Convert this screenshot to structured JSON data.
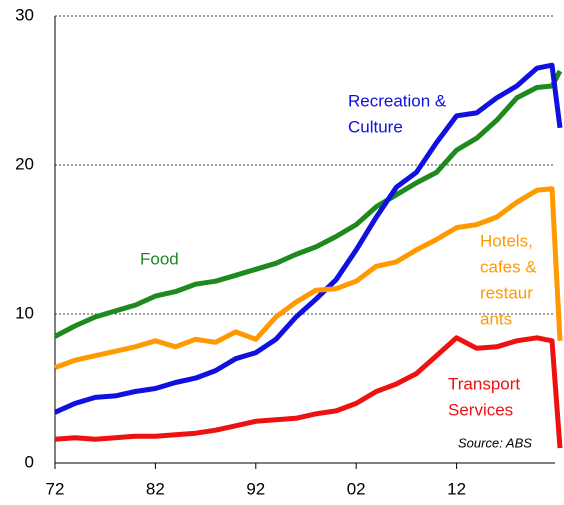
{
  "chart_data": {
    "type": "line",
    "x": [
      1972,
      1974,
      1976,
      1978,
      1980,
      1982,
      1984,
      1986,
      1988,
      1990,
      1992,
      1994,
      1996,
      1998,
      2000,
      2002,
      2004,
      2006,
      2008,
      2010,
      2012,
      2014,
      2016,
      2018,
      2020,
      2021.5,
      2022.3
    ],
    "xlim": [
      1972,
      2022.5
    ],
    "xticks": [
      {
        "value": 1972,
        "label": "72"
      },
      {
        "value": 1982,
        "label": "82"
      },
      {
        "value": 1992,
        "label": "92"
      },
      {
        "value": 2002,
        "label": "02"
      },
      {
        "value": 2012,
        "label": "12"
      }
    ],
    "ylim": [
      0,
      30
    ],
    "yticks": [
      0,
      10,
      20,
      30
    ],
    "grid": true,
    "series": [
      {
        "name_lines": [
          "Food"
        ],
        "color": "#1e8a1e",
        "values": [
          8.5,
          9.2,
          9.8,
          10.2,
          10.6,
          11.2,
          11.5,
          12.0,
          12.2,
          12.6,
          13.0,
          13.4,
          14.0,
          14.5,
          15.2,
          16.0,
          17.2,
          18.0,
          18.8,
          19.5,
          21.0,
          21.8,
          23.0,
          24.5,
          25.2,
          25.3,
          26.3
        ]
      },
      {
        "name_lines": [
          "Recreation &",
          "Culture"
        ],
        "color": "#1010e0",
        "values": [
          3.4,
          4.0,
          4.4,
          4.5,
          4.8,
          5.0,
          5.4,
          5.7,
          6.2,
          7.0,
          7.4,
          8.3,
          9.8,
          11.0,
          12.3,
          14.3,
          16.5,
          18.5,
          19.5,
          21.5,
          23.3,
          23.5,
          24.5,
          25.3,
          26.5,
          26.7,
          22.5
        ]
      },
      {
        "name_lines": [
          "Hotels,",
          "cafes &",
          "restaur",
          "ants"
        ],
        "color": "#ff9900",
        "values": [
          6.4,
          6.9,
          7.2,
          7.5,
          7.8,
          8.2,
          7.8,
          8.3,
          8.1,
          8.8,
          8.3,
          9.8,
          10.8,
          11.6,
          11.7,
          12.2,
          13.2,
          13.5,
          14.3,
          15.0,
          15.8,
          16.0,
          16.5,
          17.5,
          18.3,
          18.4,
          8.2
        ]
      },
      {
        "name_lines": [
          "Transport",
          "Services"
        ],
        "color": "#ee1111",
        "values": [
          1.6,
          1.7,
          1.6,
          1.7,
          1.8,
          1.8,
          1.9,
          2.0,
          2.2,
          2.5,
          2.8,
          2.9,
          3.0,
          3.3,
          3.5,
          4.0,
          4.8,
          5.3,
          6.0,
          7.2,
          8.4,
          7.7,
          7.8,
          8.2,
          8.4,
          8.2,
          1.0
        ]
      }
    ],
    "annotation": "Source: ABS"
  }
}
